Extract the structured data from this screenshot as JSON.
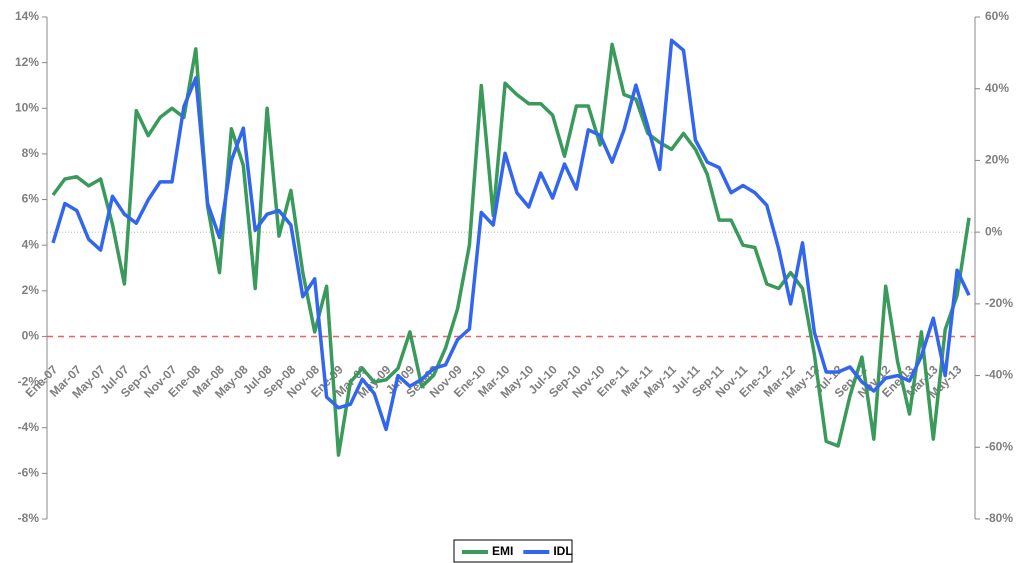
{
  "chart_data": {
    "type": "line",
    "categories": [
      "Ene-07",
      null,
      "Mar-07",
      null,
      "May-07",
      null,
      "Jul-07",
      null,
      "Sep-07",
      null,
      "Nov-07",
      null,
      "Ene-08",
      null,
      "Mar-08",
      null,
      "May-08",
      null,
      "Jul-08",
      null,
      "Sep-08",
      null,
      "Nov-08",
      null,
      "Ene-09",
      null,
      "Mar-09",
      null,
      "May-09",
      null,
      "Jul-09",
      null,
      "Sep-09",
      null,
      "Nov-09",
      null,
      "Ene-10",
      null,
      "Mar-10",
      null,
      "May-10",
      null,
      "Jul-10",
      null,
      "Sep-10",
      null,
      "Nov-10",
      null,
      "Ene-11",
      null,
      "Mar-11",
      null,
      "May-11",
      null,
      "Jul-11",
      null,
      "Sep-11",
      null,
      "Nov-11",
      null,
      "Ene-12",
      null,
      "Mar-12",
      null,
      "May-12",
      null,
      "Jul-12",
      null,
      "Sep-12",
      null,
      "Nov-12",
      null,
      "Ene-13",
      null,
      "Mar-13",
      null,
      "May-13",
      null
    ],
    "series": [
      {
        "name": "EMI",
        "color": "#3a9a5b",
        "values": [
          6.2,
          6.9,
          7.0,
          6.6,
          6.9,
          4.9,
          2.3,
          9.9,
          8.8,
          9.6,
          10.0,
          9.6,
          12.6,
          5.7,
          2.8,
          9.1,
          7.5,
          2.1,
          10.0,
          4.4,
          6.4,
          2.8,
          0.2,
          2.2,
          -5.2,
          -2.0,
          -1.4,
          -2.0,
          -1.9,
          -1.4,
          0.2,
          -2.2,
          -1.7,
          -0.5,
          1.2,
          4.0,
          11.0,
          5.3,
          11.1,
          10.6,
          10.2,
          10.2,
          9.7,
          7.9,
          10.1,
          10.1,
          8.4,
          12.8,
          10.6,
          10.4,
          8.9,
          8.5,
          8.2,
          8.9,
          8.2,
          7.1,
          5.1,
          5.1,
          4.0,
          3.9,
          2.3,
          2.1,
          2.8,
          2.1,
          -0.8,
          -4.6,
          -4.8,
          -2.6,
          -0.9,
          -4.5,
          2.2,
          -1.1,
          -3.4,
          0.2,
          -4.5,
          0.3,
          1.8,
          5.2
        ]
      },
      {
        "name": "IDL",
        "color": "#3366ee",
        "axis": "y2",
        "values": [
          -3,
          8,
          6,
          -2,
          -5,
          10,
          5,
          2.5,
          9,
          14,
          14,
          35,
          43,
          8,
          -1.5,
          20,
          29,
          0.5,
          5,
          6,
          2,
          -18,
          -13,
          -46,
          -49,
          -48,
          -41,
          -45,
          -55,
          -40,
          -43,
          -41,
          -38,
          -37,
          -30,
          -27,
          5.5,
          2,
          22,
          11,
          7,
          16.5,
          9.5,
          19,
          12,
          28.5,
          27,
          19.5,
          28.5,
          41,
          29.5,
          17.5,
          53.5,
          50.7,
          25.7,
          19.5,
          18,
          11,
          13,
          11,
          7.5,
          -4.7,
          -20,
          -3,
          -28,
          -39,
          -39,
          -37.6,
          -41.8,
          -44.3,
          -40.7,
          -40,
          -41.5,
          -34.6,
          -24,
          -40,
          -10.6,
          -17.6
        ]
      }
    ],
    "ylim": [
      -8,
      14
    ],
    "yticks": [
      {
        "value": -8,
        "label": "-8%"
      },
      {
        "value": -6,
        "label": "-6%"
      },
      {
        "value": -4,
        "label": "-4%"
      },
      {
        "value": -2,
        "label": "-2%"
      },
      {
        "value": 0,
        "label": "0%"
      },
      {
        "value": 2,
        "label": "2%"
      },
      {
        "value": 4,
        "label": "4%"
      },
      {
        "value": 6,
        "label": "6%"
      },
      {
        "value": 8,
        "label": "8%"
      },
      {
        "value": 10,
        "label": "10%"
      },
      {
        "value": 12,
        "label": "12%"
      },
      {
        "value": 14,
        "label": "14%"
      }
    ],
    "y2lim": [
      -80,
      60
    ],
    "y2ticks": [
      {
        "value": -80,
        "label": "-80%"
      },
      {
        "value": -60,
        "label": "-60%"
      },
      {
        "value": -40,
        "label": "-40%"
      },
      {
        "value": -20,
        "label": "-20%"
      },
      {
        "value": 0,
        "label": "0%"
      },
      {
        "value": 20,
        "label": "20%"
      },
      {
        "value": 40,
        "label": "40%"
      },
      {
        "value": 60,
        "label": "60%"
      }
    ],
    "legend": "bottom"
  }
}
